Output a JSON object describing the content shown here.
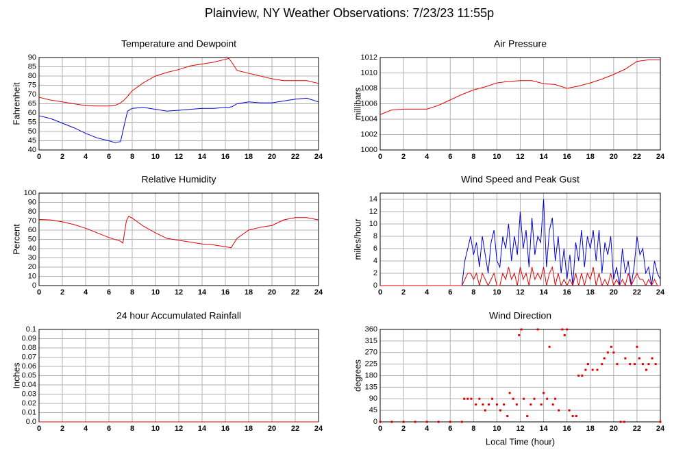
{
  "title": "Plainview, NY Weather Observations: 7/23/23 11:55p",
  "chart_data": [
    {
      "type": "line",
      "title": "Temperature and Dewpoint",
      "ylabel": "Fahrenheit",
      "x": [
        0,
        1,
        2,
        3,
        4,
        5,
        6,
        6.5,
        7,
        7.3,
        7.6,
        8,
        9,
        10,
        11,
        12,
        13,
        14,
        15,
        16,
        16.3,
        16.6,
        17,
        18,
        19,
        20,
        21,
        22,
        23,
        24
      ],
      "series": [
        {
          "color": "#e00000",
          "values": [
            68.5,
            67,
            66,
            65,
            64,
            63.8,
            63.8,
            64,
            65.5,
            67,
            69,
            72,
            76.5,
            80,
            82,
            83.5,
            85.5,
            86.5,
            87.5,
            89,
            89.5,
            87,
            83,
            81.5,
            80,
            78.5,
            77.5,
            77.5,
            77.5,
            76
          ]
        },
        {
          "color": "#0000d0",
          "values": [
            58.5,
            57,
            54.5,
            52,
            49,
            46.5,
            45,
            44,
            44.5,
            53,
            61,
            62.5,
            63,
            62,
            61,
            61.5,
            62,
            62.5,
            62.5,
            63,
            63,
            63.5,
            65,
            66,
            65.5,
            65.5,
            66.5,
            67.5,
            68,
            66
          ]
        }
      ],
      "xlim": [
        0,
        24
      ],
      "xticks": [
        0,
        2,
        4,
        6,
        8,
        10,
        12,
        14,
        16,
        18,
        20,
        22,
        24
      ],
      "ylim": [
        40,
        90
      ],
      "yticks": [
        40,
        45,
        50,
        55,
        60,
        65,
        70,
        75,
        80,
        85,
        90
      ],
      "grid": true
    },
    {
      "type": "line",
      "title": "Air Pressure",
      "ylabel": "millibars",
      "x": [
        0,
        1,
        2,
        3,
        4,
        5,
        6,
        7,
        8,
        9,
        10,
        11,
        12,
        13,
        14,
        15,
        16,
        17,
        18,
        19,
        20,
        21,
        22,
        23,
        24
      ],
      "series": [
        {
          "color": "#e00000",
          "values": [
            1004.6,
            1005.2,
            1005.3,
            1005.3,
            1005.3,
            1005.8,
            1006.5,
            1007.2,
            1007.8,
            1008.2,
            1008.7,
            1008.9,
            1009,
            1009,
            1008.6,
            1008.5,
            1008,
            1008.3,
            1008.7,
            1009.2,
            1009.8,
            1010.5,
            1011.5,
            1011.7,
            1011.7
          ]
        }
      ],
      "xlim": [
        0,
        24
      ],
      "xticks": [
        0,
        2,
        4,
        6,
        8,
        10,
        12,
        14,
        16,
        18,
        20,
        22,
        24
      ],
      "ylim": [
        1000,
        1012
      ],
      "yticks": [
        1000,
        1002,
        1004,
        1006,
        1008,
        1010,
        1012
      ],
      "grid": true
    },
    {
      "type": "line",
      "title": "Relative Humidity",
      "ylabel": "Percent",
      "x": [
        0,
        1,
        2,
        3,
        4,
        5,
        6,
        7,
        7.2,
        7.5,
        7.7,
        8,
        9,
        10,
        11,
        12,
        13,
        14,
        15,
        16,
        16.5,
        17,
        18,
        19,
        20,
        21,
        22,
        23,
        24
      ],
      "series": [
        {
          "color": "#e00000",
          "values": [
            71.5,
            71,
            69,
            66,
            62,
            57,
            52,
            48,
            46,
            70,
            75,
            73,
            64,
            57,
            51,
            49,
            47,
            45,
            44,
            42,
            41,
            51,
            60,
            63,
            65,
            71,
            73.5,
            73.5,
            71
          ]
        }
      ],
      "xlim": [
        0,
        24
      ],
      "xticks": [
        0,
        2,
        4,
        6,
        8,
        10,
        12,
        14,
        16,
        18,
        20,
        22,
        24
      ],
      "ylim": [
        0,
        100
      ],
      "yticks": [
        0,
        10,
        20,
        30,
        40,
        50,
        60,
        70,
        80,
        90,
        100
      ],
      "grid": true
    },
    {
      "type": "line",
      "title": "Wind Speed and Peak Gust",
      "ylabel": "miles/hour",
      "x": [
        0,
        7,
        7.25,
        7.5,
        7.75,
        8,
        8.25,
        8.5,
        8.75,
        9,
        9.25,
        9.5,
        9.75,
        10,
        10.25,
        10.5,
        10.75,
        11,
        11.25,
        11.5,
        11.75,
        12,
        12.25,
        12.5,
        12.75,
        13,
        13.25,
        13.5,
        13.75,
        14,
        14.25,
        14.5,
        14.75,
        15,
        15.25,
        15.5,
        15.75,
        16,
        16.25,
        16.5,
        16.75,
        17,
        17.25,
        17.5,
        17.75,
        18,
        18.25,
        18.5,
        18.75,
        19,
        19.25,
        19.5,
        19.75,
        20,
        20.25,
        20.5,
        20.75,
        21,
        21.25,
        21.5,
        21.75,
        22,
        22.25,
        22.5,
        22.75,
        23,
        23.25,
        23.5,
        23.75,
        24
      ],
      "series": [
        {
          "color": "#0000d0",
          "values": [
            0,
            0,
            4,
            6,
            8,
            5,
            7,
            3,
            8,
            5,
            2,
            7,
            9,
            4,
            3,
            8,
            6,
            10,
            4,
            8,
            5,
            12,
            6,
            9,
            3,
            11,
            5,
            8,
            7,
            14,
            3,
            9,
            11,
            4,
            8,
            2,
            6,
            1,
            5,
            0,
            7,
            4,
            9,
            3,
            8,
            6,
            9,
            4,
            9,
            2,
            7,
            5,
            8,
            1,
            3,
            0,
            6,
            2,
            4,
            0,
            3,
            8,
            5,
            6,
            2,
            3,
            0,
            4,
            2,
            1
          ]
        },
        {
          "color": "#e00000",
          "values": [
            0,
            0,
            1,
            2,
            2,
            1,
            2,
            0,
            2,
            1,
            0,
            1,
            2,
            0,
            0,
            2,
            1,
            3,
            1,
            2,
            0,
            3,
            1,
            2,
            0,
            3,
            1,
            2,
            1,
            3,
            0,
            2,
            3,
            0,
            2,
            0,
            1,
            0,
            1,
            0,
            2,
            0,
            2,
            0,
            2,
            1,
            3,
            0,
            2,
            0,
            1,
            0,
            2,
            0,
            1,
            0,
            1,
            0,
            2,
            0,
            1,
            2,
            1,
            1,
            0,
            1,
            0,
            1,
            0,
            0
          ]
        }
      ],
      "xlim": [
        0,
        24
      ],
      "xticks": [
        0,
        2,
        4,
        6,
        8,
        10,
        12,
        14,
        16,
        18,
        20,
        22,
        24
      ],
      "ylim": [
        0,
        15
      ],
      "yticks": [
        0,
        2,
        4,
        6,
        8,
        10,
        12,
        14
      ],
      "grid": true
    },
    {
      "type": "line",
      "title": "24 hour Accumulated Rainfall",
      "ylabel": "Inches",
      "x": [
        0,
        24
      ],
      "series": [
        {
          "color": "#e00000",
          "values": [
            0,
            0
          ]
        }
      ],
      "xlim": [
        0,
        24
      ],
      "xticks": [
        0,
        2,
        4,
        6,
        8,
        10,
        12,
        14,
        16,
        18,
        20,
        22,
        24
      ],
      "ylim": [
        0,
        0.1
      ],
      "yticks": [
        {
          "value": 0,
          "label": "0.0"
        },
        0.01,
        0.02,
        0.03,
        0.04,
        0.05,
        0.06,
        0.07,
        0.08,
        0.09,
        0.1
      ],
      "grid": true
    },
    {
      "type": "scatter",
      "title": "Wind Direction",
      "ylabel": "degrees",
      "xlabel": "Local Time (hour)",
      "color": "#e00000",
      "x": [
        0,
        1,
        2,
        3,
        4,
        5,
        6,
        7,
        7.2,
        7.5,
        7.8,
        8.2,
        8.5,
        8.8,
        9,
        9.3,
        9.6,
        10,
        10.3,
        10.6,
        10.9,
        11.1,
        11.4,
        11.7,
        11.9,
        12.1,
        12.3,
        12.6,
        12.9,
        13.2,
        13.5,
        13.8,
        14,
        14.3,
        14.5,
        14.8,
        15,
        15.3,
        15.6,
        15.8,
        16,
        16.2,
        16.5,
        16.8,
        17,
        17.3,
        17.6,
        17.8,
        18.2,
        18.6,
        19,
        19.2,
        19.5,
        19.8,
        20,
        20.3,
        20.6,
        20.9,
        21,
        21.4,
        21.8,
        22,
        22.2,
        22.5,
        22.8,
        23,
        23.3,
        23.6,
        24
      ],
      "values": [
        0,
        0,
        0,
        0,
        0,
        0,
        0,
        0,
        90,
        90,
        90,
        67.5,
        90,
        67.5,
        45,
        67.5,
        90,
        67.5,
        45,
        67.5,
        22.5,
        112.5,
        90,
        67.5,
        337.5,
        360,
        90,
        22.5,
        67.5,
        90,
        360,
        67.5,
        112.5,
        90,
        292.5,
        67.5,
        90,
        45,
        360,
        337.5,
        360,
        45,
        22.5,
        22.5,
        180,
        180,
        202.5,
        225,
        202.5,
        202.5,
        225,
        247.5,
        270,
        292.5,
        270,
        225,
        0,
        0,
        247.5,
        225,
        225,
        292.5,
        247.5,
        225,
        202.5,
        225,
        247.5,
        225,
        0
      ],
      "xlim": [
        0,
        24
      ],
      "xticks": [
        0,
        2,
        4,
        6,
        8,
        10,
        12,
        14,
        16,
        18,
        20,
        22,
        24
      ],
      "ylim": [
        0,
        360
      ],
      "yticks": [
        0,
        45,
        90,
        135,
        180,
        225,
        270,
        315,
        360
      ],
      "grid": true
    }
  ]
}
